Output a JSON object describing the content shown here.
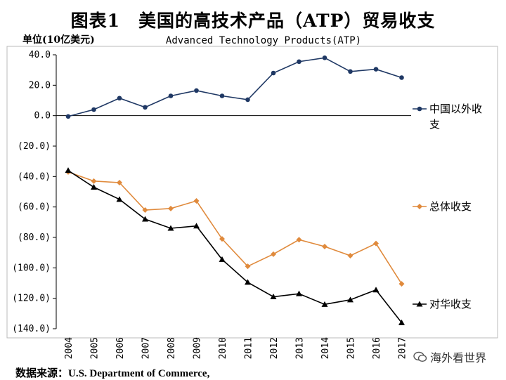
{
  "page": {
    "title": "图表1　美国的高技术产品（ATP）贸易收支",
    "source": "数据来源：U.S. Department of Commerce,",
    "watermark": "海外看世界"
  },
  "chart_data": {
    "type": "line",
    "title": "图表1　美国的高技术产品（ATP）贸易收支",
    "subtitle": "Advanced Technology Products(ATP)",
    "ylabel": "单位(10亿美元)",
    "xlabel": "",
    "ylim": [
      -140,
      40
    ],
    "yticks": [
      40,
      20,
      0,
      -20,
      -40,
      -60,
      -80,
      -100,
      -120,
      -140
    ],
    "ytick_labels": [
      "40.0",
      "20.0",
      "0.0",
      "(20.0)",
      "(40.0)",
      "(60.0)",
      "(80.0)",
      "(100.0)",
      "(120.0)",
      "(140.0)"
    ],
    "categories": [
      "2004",
      "2005",
      "2006",
      "2007",
      "2008",
      "2009",
      "2010",
      "2011",
      "2012",
      "2013",
      "2014",
      "2015",
      "2016",
      "2017"
    ],
    "grid": false,
    "series": [
      {
        "name": "中国以外收支",
        "color": "#1f3864",
        "marker": "circle",
        "values": [
          -0.5,
          4,
          11.5,
          5.5,
          13,
          16.5,
          13,
          10.5,
          28,
          35.5,
          38,
          29,
          30.5,
          25
        ]
      },
      {
        "name": "总体收支",
        "color": "#e08a3c",
        "marker": "diamond",
        "values": [
          -37,
          -43,
          -44,
          -62,
          -61,
          -56,
          -81,
          -99,
          -91,
          -81.5,
          -86,
          -92,
          -84,
          -110.5
        ]
      },
      {
        "name": "对华收支",
        "color": "#000000",
        "marker": "triangle",
        "values": [
          -36,
          -47,
          -55,
          -68,
          -74,
          -72.5,
          -94.5,
          -109.5,
          -119,
          -117,
          -124,
          -121,
          -114.5,
          -136
        ]
      }
    ]
  }
}
